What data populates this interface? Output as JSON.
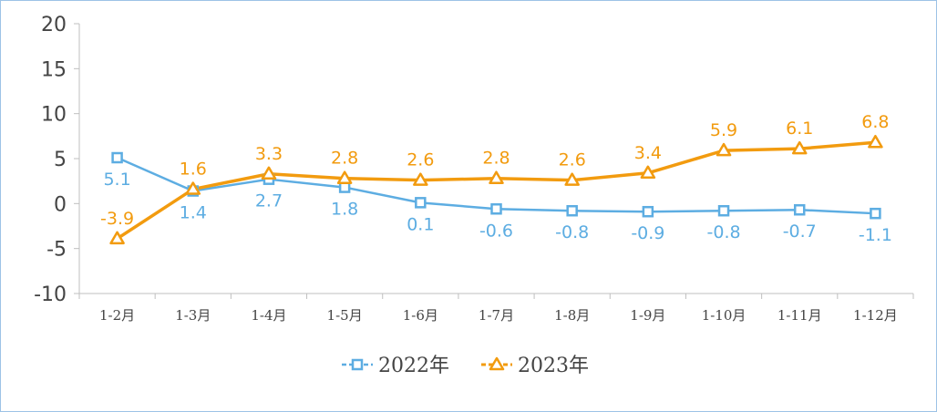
{
  "chart_data": {
    "type": "line",
    "title": "",
    "xlabel": "",
    "ylabel": "",
    "categories": [
      "1-2月",
      "1-3月",
      "1-4月",
      "1-5月",
      "1-6月",
      "1-7月",
      "1-8月",
      "1-9月",
      "1-10月",
      "1-11月",
      "1-12月"
    ],
    "ylim": [
      -10,
      20
    ],
    "yticks": [
      "-10",
      "-5",
      "0",
      "5",
      "10",
      "15",
      "20"
    ],
    "grid": false,
    "legend": "bottom",
    "series": [
      {
        "name": "2022年",
        "color": "#5dade2",
        "marker": "square",
        "values": [
          5.1,
          1.4,
          2.7,
          1.8,
          0.1,
          -0.6,
          -0.8,
          -0.9,
          -0.8,
          -0.7,
          -1.1
        ],
        "labels": [
          "5.1",
          "1.4",
          "2.7",
          "1.8",
          "0.1",
          "-0.6",
          "-0.8",
          "-0.9",
          "-0.8",
          "-0.7",
          "-1.1"
        ]
      },
      {
        "name": "2023年",
        "color": "#f29b0f",
        "marker": "triangle",
        "values": [
          -3.9,
          1.6,
          3.3,
          2.8,
          2.6,
          2.8,
          2.6,
          3.4,
          5.9,
          6.1,
          6.8
        ],
        "labels": [
          "-3.9",
          "1.6",
          "3.3",
          "2.8",
          "2.6",
          "2.8",
          "2.6",
          "3.4",
          "5.9",
          "6.1",
          "6.8"
        ]
      }
    ]
  }
}
